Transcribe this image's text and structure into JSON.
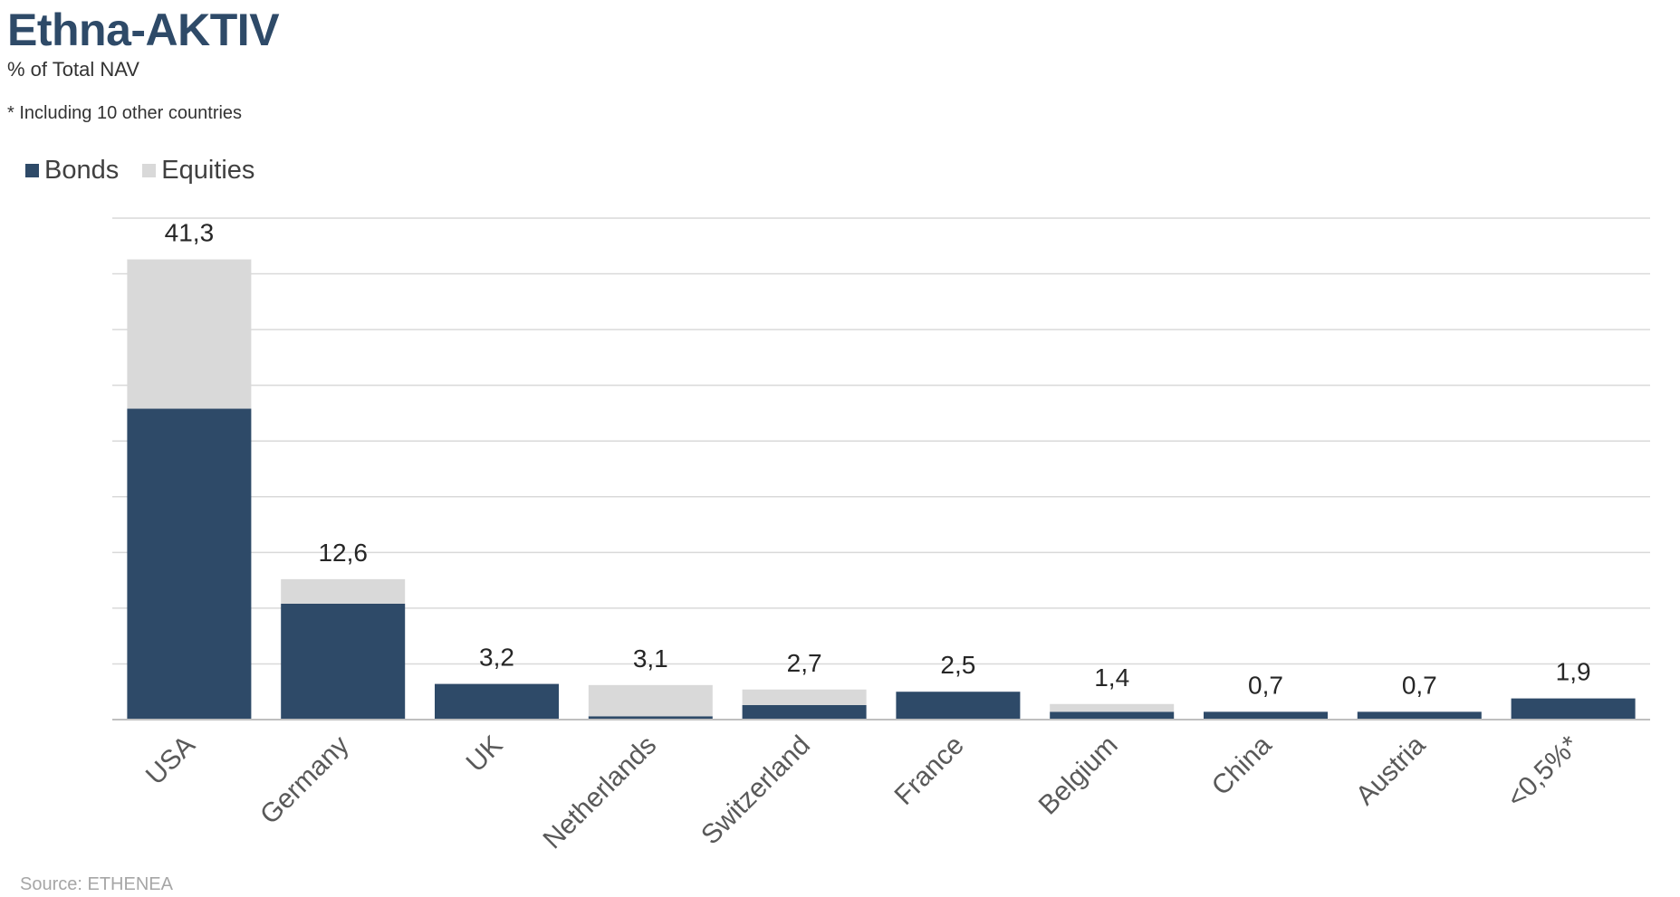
{
  "header": {
    "title": "Ethna-AKTIV",
    "subtitle": "% of Total NAV",
    "footnote": "* Including 10 other countries"
  },
  "legend": {
    "bonds_label": "Bonds",
    "equities_label": "Equities"
  },
  "source": "Source: ETHENEA",
  "colors": {
    "bonds": "#2e4a68",
    "equities": "#d9d9d9",
    "grid": "#d9d9d9",
    "axis": "#bfbfbf"
  },
  "chart_data": {
    "type": "bar",
    "stacked": true,
    "categories": [
      "USA",
      "Germany",
      "UK",
      "Netherlands",
      "Switzerland",
      "France",
      "Belgium",
      "China",
      "Austria",
      "<0,5%*"
    ],
    "series": [
      {
        "name": "Bonds",
        "values": [
          27.9,
          10.4,
          3.2,
          0.3,
          1.3,
          2.5,
          0.7,
          0.7,
          0.7,
          1.9
        ]
      },
      {
        "name": "Equities",
        "values": [
          13.4,
          2.2,
          0.0,
          2.8,
          1.4,
          0.0,
          0.7,
          0.0,
          0.0,
          0.0
        ]
      }
    ],
    "totals": [
      "41,3",
      "12,6",
      "3,2",
      "3,1",
      "2,7",
      "2,5",
      "1,4",
      "0,7",
      "0,7",
      "1,9"
    ],
    "ylim": [
      0,
      45
    ],
    "grid": true,
    "legend_position": "top-left",
    "xlabel": "",
    "ylabel": ""
  }
}
